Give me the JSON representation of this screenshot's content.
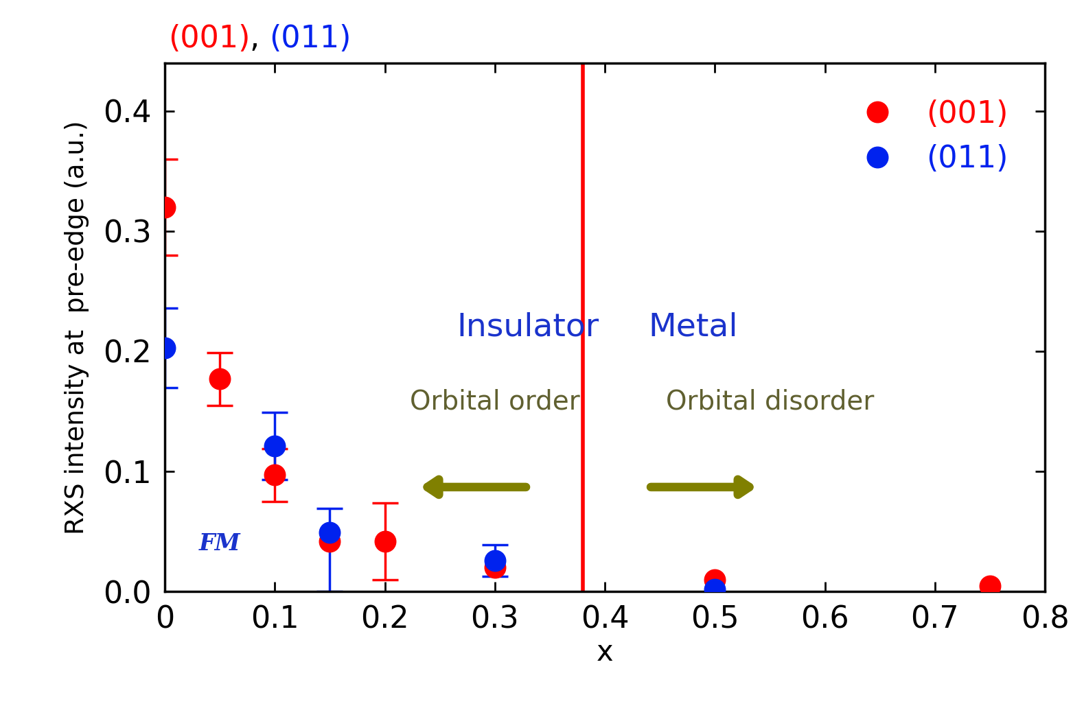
{
  "chart_data": {
    "type": "scatter",
    "header": [
      "(001)",
      ", ",
      "(011)"
    ],
    "x_label": "x",
    "y_label": "RXS intensity at  pre-edge (a.u.)",
    "xlim": [
      0,
      0.8
    ],
    "xticks": [
      0,
      0.1,
      0.2,
      0.3,
      0.4,
      0.5,
      0.6,
      0.7,
      0.8
    ],
    "ylim": [
      0,
      0.44
    ],
    "yticks": [
      0.0,
      0.1,
      0.2,
      0.3,
      0.4
    ],
    "legend": "upper right",
    "boundary_x": 0.38,
    "annotations": {
      "left_phase": "Insulator",
      "right_phase": "Metal",
      "left_order": "Orbital order",
      "right_order": "Orbital disorder",
      "magnetic": "FM"
    },
    "series": [
      {
        "name": "(001)",
        "color": "#ff0000",
        "marker": "o",
        "x": [
          0,
          0.05,
          0.1,
          0.15,
          0.2,
          0.3,
          0.5,
          0.75
        ],
        "values": [
          0.32,
          0.177,
          0.097,
          0.042,
          0.042,
          0.02,
          0.01,
          0.005
        ],
        "errors": [
          0.04,
          0.022,
          0.022,
          null,
          0.032,
          null,
          null,
          null
        ]
      },
      {
        "name": "(011)",
        "color": "#0022ee",
        "marker": "o",
        "x": [
          0,
          0.1,
          0.15,
          0.3,
          0.5
        ],
        "values": [
          0.203,
          0.121,
          0.049,
          0.026,
          0.002
        ],
        "errors": [
          0.033,
          0.028,
          [
            0.049,
            0.02
          ],
          0.013,
          null
        ]
      }
    ]
  }
}
